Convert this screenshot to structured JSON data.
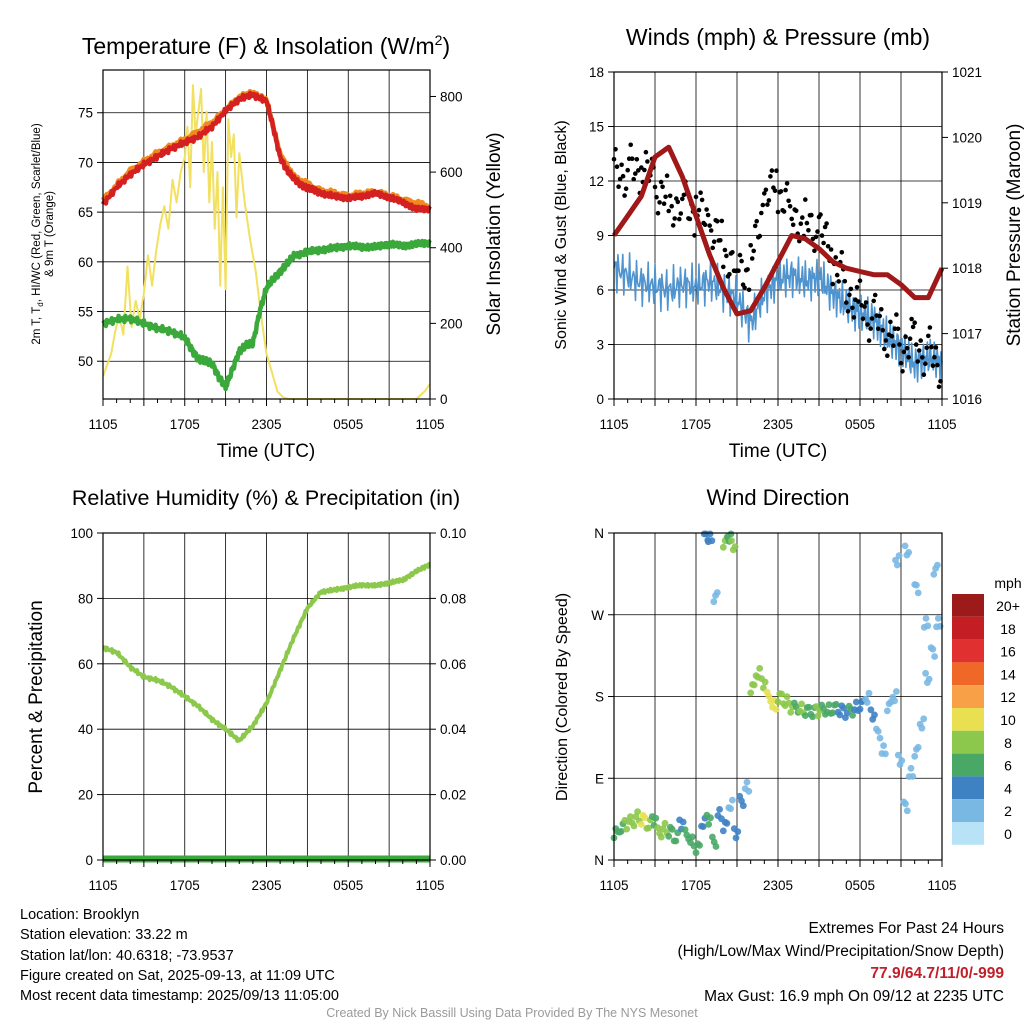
{
  "colors": {
    "temp": "#d42020",
    "temp9m": "#f08a20",
    "dewpoint": "#3aa83a",
    "solar": "#f2e060",
    "wind": "#4f94cf",
    "gust": "#000000",
    "pressure": "#a01818",
    "rh": "#8cc84b",
    "precip": "#3aa83a"
  },
  "chart_data": [
    {
      "type": "line",
      "title_main": "Temperature (F) & Insolation (W/m",
      "title_sup": "2",
      "title_close": ")",
      "xlabel": "Time (UTC)",
      "ylabel_line1": "2m T, T",
      "ylabel_sub": "d",
      "ylabel_rest": ", HI/WC (Red, Green, Scarlet/Blue)",
      "ylabel_line2": "& 9m T (Orange)",
      "y2label": "Solar Insolation (Yellow)",
      "xticks": [
        "1105",
        "1705",
        "2305",
        "0505",
        "1105"
      ],
      "yticks": [
        "50",
        "55",
        "60",
        "65",
        "70",
        "75"
      ],
      "y2ticks": [
        "0",
        "200",
        "400",
        "600",
        "800"
      ],
      "ylim": [
        46.2,
        79.3
      ],
      "y2lim": [
        0,
        870
      ],
      "series": [
        {
          "key": "temp",
          "x": [
            0,
            1,
            2,
            3,
            4,
            5,
            6,
            7,
            8,
            9,
            10,
            11,
            12,
            12.5,
            13,
            13.5,
            14,
            14.5,
            15,
            15.5,
            16,
            17,
            18,
            19,
            20,
            21,
            22,
            23,
            24
          ],
          "y": [
            65.8,
            67.5,
            68.8,
            69.8,
            70.6,
            71.4,
            72.0,
            72.6,
            73.6,
            75.2,
            76.4,
            76.8,
            76.2,
            73.5,
            70.5,
            69.2,
            68.4,
            67.8,
            67.4,
            67.2,
            66.9,
            66.6,
            66.4,
            66.6,
            66.9,
            66.5,
            66.0,
            65.3,
            65.3
          ]
        },
        {
          "key": "dewpoint",
          "x": [
            0,
            1,
            2,
            3,
            4,
            5,
            6,
            6.5,
            7,
            7.5,
            8,
            8.5,
            9,
            9.5,
            10,
            10.5,
            11,
            11.5,
            12,
            12.5,
            13,
            13.5,
            14,
            15,
            16,
            17,
            18,
            19,
            20,
            21,
            22,
            23,
            24
          ],
          "y": [
            53.8,
            54.2,
            54.3,
            53.8,
            53.3,
            53.0,
            52.4,
            51.2,
            50.2,
            50.0,
            49.8,
            48.4,
            47.4,
            49.2,
            51.0,
            51.6,
            51.8,
            55.0,
            57.4,
            58.3,
            59.0,
            59.8,
            60.6,
            61.0,
            61.2,
            61.4,
            61.6,
            61.5,
            61.5,
            61.8,
            61.6,
            61.8,
            61.9
          ]
        },
        {
          "key": "solar",
          "x": [
            0,
            0.3,
            0.6,
            0.9,
            1.2,
            1.5,
            1.8,
            2.1,
            2.4,
            2.7,
            3,
            3.3,
            3.6,
            3.9,
            4.2,
            4.5,
            4.8,
            5.1,
            5.4,
            5.7,
            6.0,
            6.2,
            6.4,
            6.6,
            6.8,
            7.0,
            7.2,
            7.4,
            7.6,
            7.8,
            8.0,
            8.2,
            8.4,
            8.6,
            8.8,
            9.0,
            9.2,
            9.4,
            9.6,
            9.8,
            10.0,
            10.4,
            10.8,
            11.2,
            11.6,
            12.0,
            12.4,
            12.8,
            13.2,
            13.6,
            14,
            15,
            16,
            17,
            18,
            19,
            20,
            21,
            22,
            23,
            23.6,
            24
          ],
          "y": [
            60,
            90,
            120,
            180,
            220,
            170,
            350,
            190,
            260,
            210,
            280,
            380,
            300,
            390,
            460,
            510,
            450,
            580,
            520,
            600,
            640,
            720,
            560,
            830,
            700,
            760,
            820,
            600,
            760,
            520,
            680,
            450,
            600,
            300,
            560,
            290,
            740,
            640,
            700,
            480,
            650,
            520,
            420,
            340,
            220,
            120,
            70,
            20,
            5,
            0,
            0,
            0,
            0,
            0,
            0,
            0,
            0,
            0,
            0,
            0,
            20,
            40
          ]
        },
        {
          "key": "temp9m",
          "x": [
            0,
            2,
            4,
            6,
            8,
            10,
            11,
            12,
            13,
            14,
            16,
            18,
            20,
            22,
            24
          ],
          "y": [
            66.2,
            69.2,
            71.0,
            72.3,
            74.0,
            76.6,
            77.0,
            76.3,
            70.8,
            68.6,
            67.2,
            66.7,
            67.1,
            66.3,
            65.6
          ]
        }
      ]
    },
    {
      "type": "line",
      "title": "Winds (mph) & Pressure (mb)",
      "xlabel": "Time (UTC)",
      "ylabel": "Sonic Wind & Gust (Blue, Black)",
      "y2label": "Station Pressure (Maroon)",
      "xticks": [
        "1105",
        "1705",
        "2305",
        "0505",
        "1105"
      ],
      "yticks": [
        "0",
        "3",
        "6",
        "9",
        "12",
        "15",
        "18"
      ],
      "y2ticks": [
        "1016",
        "1017",
        "1018",
        "1019",
        "1020",
        "1021"
      ],
      "ylim": [
        0,
        18
      ],
      "y2lim": [
        1016,
        1021
      ],
      "series": [
        {
          "key": "wind",
          "x": [
            0,
            1,
            2,
            3,
            4,
            5,
            6,
            7,
            8,
            9,
            10,
            11,
            12,
            13,
            14,
            15,
            16,
            17,
            18,
            19,
            20,
            21,
            22,
            23,
            24
          ],
          "y": [
            7.2,
            6.8,
            6.4,
            6.2,
            6.0,
            6.3,
            6.2,
            6.5,
            6.0,
            5.5,
            4.2,
            5.8,
            6.6,
            6.8,
            6.5,
            6.7,
            5.8,
            5.2,
            4.7,
            4.4,
            3.4,
            2.8,
            1.9,
            2.3,
            2.0
          ]
        },
        {
          "key": "gust",
          "x": [
            0,
            1,
            2,
            3,
            4,
            5,
            6,
            7,
            8,
            9,
            10,
            11,
            12,
            13,
            14,
            15,
            16,
            17,
            18,
            19,
            20,
            21,
            22,
            23,
            24
          ],
          "y": [
            13.2,
            12.6,
            12.4,
            11.6,
            11.0,
            11.2,
            10.2,
            9.2,
            8.4,
            7.6,
            7.2,
            10.6,
            11.6,
            10.8,
            9.7,
            9.0,
            7.5,
            6.4,
            5.5,
            4.3,
            3.2,
            3.0,
            3.6,
            2.6,
            1.6
          ]
        },
        {
          "key": "pressure",
          "x": [
            0,
            1,
            2,
            3,
            4,
            5,
            6,
            7,
            8,
            9,
            10,
            11,
            12,
            13,
            14,
            15,
            16,
            17,
            18,
            19,
            20,
            21,
            22,
            23,
            24
          ],
          "y": [
            1018.5,
            1018.8,
            1019.1,
            1019.7,
            1019.85,
            1019.4,
            1018.8,
            1018.2,
            1017.7,
            1017.3,
            1017.35,
            1017.7,
            1018.1,
            1018.5,
            1018.45,
            1018.3,
            1018.1,
            1018.0,
            1017.95,
            1017.9,
            1017.9,
            1017.75,
            1017.55,
            1017.55,
            1018.0
          ]
        }
      ]
    },
    {
      "type": "line",
      "title": "Relative Humidity (%) & Precipitation (in)",
      "xlabel": "",
      "ylabel": "Percent & Precipitation",
      "xticks": [
        "1105",
        "1705",
        "2305",
        "0505",
        "1105"
      ],
      "yticks": [
        "0",
        "20",
        "40",
        "60",
        "80",
        "100"
      ],
      "y2ticks": [
        "0.00",
        "0.02",
        "0.04",
        "0.06",
        "0.08",
        "0.10"
      ],
      "ylim": [
        0,
        100
      ],
      "y2lim": [
        0,
        0.1
      ],
      "series": [
        {
          "key": "rh",
          "x": [
            0,
            1,
            2,
            3,
            4,
            5,
            6,
            7,
            8,
            9,
            10,
            11,
            12,
            13,
            14,
            15,
            16,
            17,
            18,
            19,
            20,
            21,
            22,
            23,
            24
          ],
          "y": [
            65,
            63.5,
            59,
            56,
            55,
            53,
            50,
            47,
            43,
            40,
            36.5,
            41,
            48,
            58,
            68,
            77,
            82,
            82.6,
            83.4,
            84.1,
            83.9,
            84.8,
            85.6,
            88.3,
            90.4
          ]
        },
        {
          "key": "precip",
          "x": [
            0,
            24
          ],
          "y": [
            0,
            0
          ]
        }
      ]
    },
    {
      "type": "scatter",
      "title": "Wind Direction",
      "xlabel": "",
      "ylabel": "Direction (Colored By Speed)",
      "xticks": [
        "1105",
        "1705",
        "2305",
        "0505",
        "1105"
      ],
      "yticks": [
        "N",
        "E",
        "S",
        "W",
        "N"
      ],
      "ylim": [
        0,
        360
      ],
      "legend_title": "mph",
      "legend_labels": [
        "20+",
        "18",
        "16",
        "14",
        "12",
        "10",
        "8",
        "6",
        "4",
        "2",
        "0"
      ],
      "legend_colors": [
        "#9c1a1a",
        "#c41e24",
        "#e03030",
        "#f06828",
        "#f8a048",
        "#e8e050",
        "#8cc84b",
        "#4aa866",
        "#3e82c4",
        "#7ab8e4",
        "#b8e2f6"
      ],
      "x": [
        0,
        0.4,
        0.8,
        1.2,
        1.6,
        2.0,
        2.4,
        2.8,
        3.2,
        3.6,
        4.0,
        4.4,
        4.8,
        5.2,
        5.6,
        6.0,
        6.4,
        6.8,
        7.2,
        7.6,
        8.0,
        8.4,
        8.8,
        9.2,
        9.6,
        10.0,
        10.4,
        10.8,
        11.2,
        11.6,
        12.0,
        12.4,
        12.8,
        13.2,
        13.6,
        14.0,
        14.4,
        14.8,
        15.2,
        15.6,
        16.0,
        16.4,
        16.8,
        17.2,
        17.6,
        18.0,
        18.4,
        18.8,
        19.2,
        19.6,
        20.0,
        20.4,
        20.8,
        21.2,
        21.6,
        22.0,
        22.4,
        22.8,
        23.2,
        23.6,
        8.0,
        8.3,
        8.6,
        6.6,
        6.9,
        7.3,
        20.6,
        21.3,
        22.0,
        22.7,
        23.4
      ],
      "y": [
        30,
        34,
        40,
        42,
        48,
        45,
        38,
        44,
        30,
        35,
        32,
        24,
        40,
        28,
        20,
        14,
        40,
        45,
        20,
        50,
        38,
        60,
        30,
        65,
        80,
        190,
        205,
        195,
        180,
        170,
        180,
        174,
        168,
        168,
        166,
        165,
        162,
        164,
        166,
        165,
        168,
        164,
        162,
        165,
        168,
        172,
        178,
        160,
        140,
        120,
        170,
        180,
        110,
        60,
        95,
        120,
        150,
        200,
        230,
        260,
        350,
        356,
        346,
        358,
        354,
        290,
        330,
        340,
        300,
        260,
        320
      ],
      "speed": [
        5,
        6,
        7,
        7,
        8,
        9,
        7,
        6,
        8,
        7,
        6,
        5,
        4,
        5,
        6,
        5,
        3,
        6,
        5,
        4,
        3,
        2,
        4,
        3,
        2,
        7,
        8,
        7,
        9,
        10,
        8,
        7,
        7,
        6,
        7,
        6,
        5,
        7,
        6,
        6,
        5,
        4,
        3,
        5,
        4,
        3,
        2,
        3,
        2,
        1,
        2,
        1,
        1,
        2,
        1,
        2,
        1,
        2,
        1,
        1,
        7,
        6,
        8,
        4,
        3,
        2,
        1,
        2,
        1,
        2,
        1
      ]
    }
  ],
  "info": {
    "location": "Location: Brooklyn",
    "elevation": "Station elevation: 33.22 m",
    "latlon": "Station lat/lon: 40.6318; -73.9537",
    "created": "Figure created on Sat, 2025-09-13, at 11:09 UTC",
    "recent": "Most recent data timestamp: 2025/09/13 11:05:00"
  },
  "extremes": {
    "heading": "Extremes For Past 24 Hours",
    "subheading": "(High/Low/Max Wind/Precipitation/Snow Depth)",
    "values": "77.9/64.7/11/0/-999",
    "gust": "Max Gust: 16.9 mph On 09/12 at 2235 UTC"
  },
  "credit": "Created By Nick Bassill Using Data Provided By The NYS Mesonet"
}
